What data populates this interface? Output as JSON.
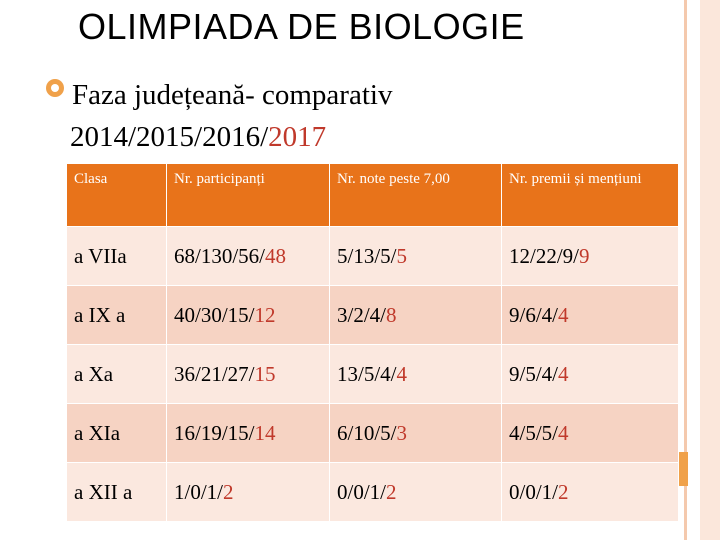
{
  "title": "OLIMPIADA DE BIOLOGIE",
  "subtitle": {
    "line1": "Faza județeană- comparativ",
    "line2_prefix": "2014/2015/2016/",
    "line2_highlight": "2017"
  },
  "table": {
    "headers": [
      "Clasa",
      "Nr. participanți",
      "Nr. note peste 7,00",
      "Nr. premii și mențiuni"
    ],
    "rows": [
      {
        "clasa": "a VIIa",
        "participanti": [
          "68/130/56/",
          "48"
        ],
        "note": [
          "5/13/5/",
          "5"
        ],
        "premii": [
          "12/22/9/",
          "9"
        ]
      },
      {
        "clasa": "a IX a",
        "participanti": [
          "40/30/15/",
          "12"
        ],
        "note": [
          "3/2/4/",
          "8"
        ],
        "premii": [
          "9/6/4/",
          "4"
        ]
      },
      {
        "clasa": "a Xa",
        "participanti": [
          "36/21/27/",
          "15"
        ],
        "note": [
          "13/5/4/",
          "4"
        ],
        "premii": [
          "9/5/4/",
          "4"
        ]
      },
      {
        "clasa": "a XIa",
        "participanti": [
          "16/19/15/",
          "14"
        ],
        "note": [
          "6/10/5/",
          "3"
        ],
        "premii": [
          "4/5/5/",
          "4"
        ]
      },
      {
        "clasa": "a XII a",
        "participanti": [
          "1/0/1/",
          "2"
        ],
        "note": [
          "0/0/1/",
          "2"
        ],
        "premii": [
          "0/0/1/",
          "2"
        ]
      }
    ]
  },
  "colors": {
    "header_bg": "#e8731a",
    "row_light": "#fbe8df",
    "row_dark": "#f6d3c3",
    "highlight": "#c0392b",
    "accent": "#f0a14a"
  }
}
